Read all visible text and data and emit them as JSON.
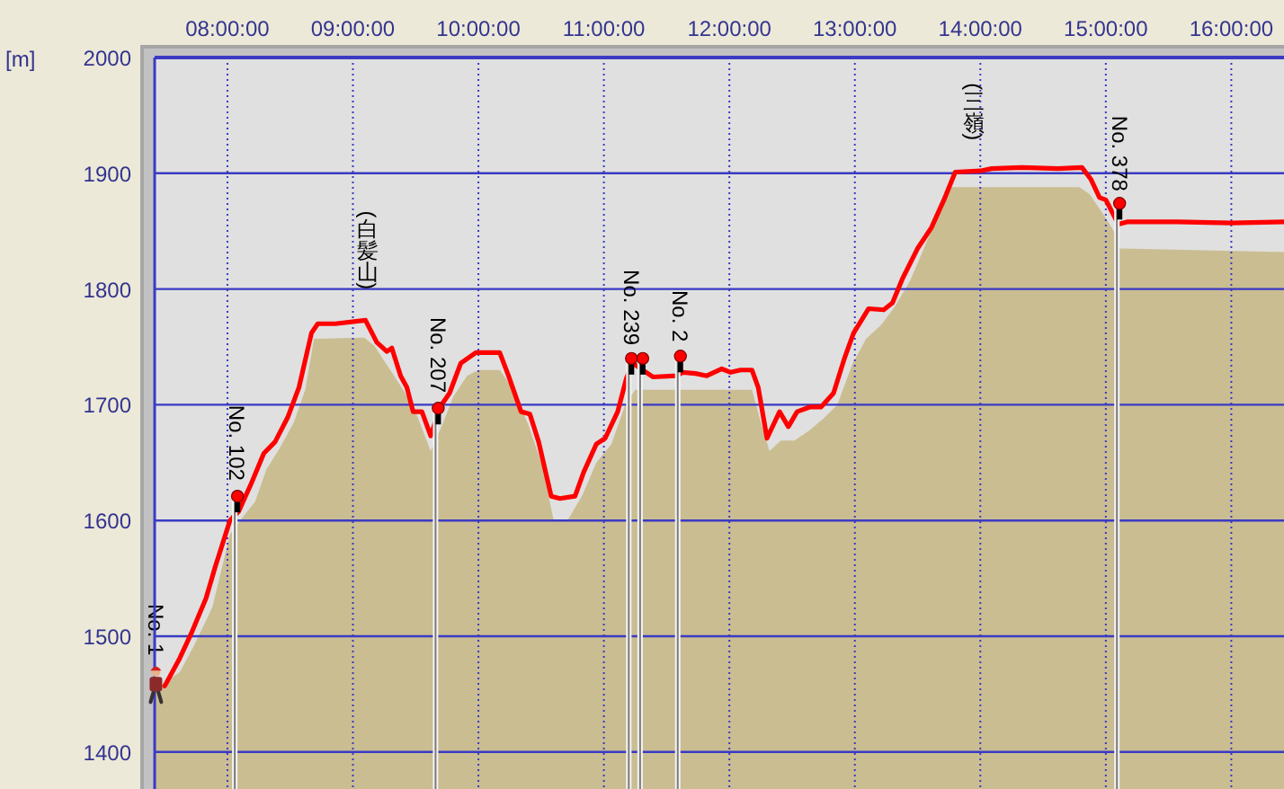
{
  "chart_data": {
    "type": "line",
    "ylabel": "[m]",
    "xlim": [
      7.42,
      16.42
    ],
    "ylim": [
      1368,
      2000
    ],
    "xticks": [
      {
        "value": 8,
        "label": "08:00:00"
      },
      {
        "value": 9,
        "label": "09:00:00"
      },
      {
        "value": 10,
        "label": "10:00:00"
      },
      {
        "value": 11,
        "label": "11:00:00"
      },
      {
        "value": 12,
        "label": "12:00:00"
      },
      {
        "value": 13,
        "label": "13:00:00"
      },
      {
        "value": 14,
        "label": "14:00:00"
      },
      {
        "value": 15,
        "label": "15:00:00"
      },
      {
        "value": 16,
        "label": "16:00:00"
      }
    ],
    "yticks": [
      1400,
      1500,
      1600,
      1700,
      1800,
      1900,
      2000
    ],
    "grid": true,
    "series": [
      {
        "type": "area",
        "color": "#cabd92",
        "x": [
          7.42,
          7.62,
          7.73,
          7.88,
          8.02,
          8.13,
          8.22,
          8.31,
          8.42,
          8.53,
          8.62,
          8.69,
          9.09,
          9.17,
          9.28,
          9.4,
          9.51,
          9.62,
          9.71,
          9.8,
          9.91,
          10.0,
          10.17,
          10.28,
          10.4,
          10.51,
          10.6,
          10.71,
          10.83,
          10.94,
          11.06,
          11.17,
          11.25,
          12.18,
          12.25,
          12.32,
          12.41,
          12.52,
          12.64,
          12.75,
          12.86,
          12.98,
          13.09,
          13.21,
          13.32,
          13.44,
          13.55,
          13.67,
          13.76,
          14.79,
          14.87,
          14.99,
          15.08,
          15.11,
          16.42
        ],
        "values": [
          1454,
          1469,
          1491,
          1525,
          1588,
          1604,
          1616,
          1644,
          1663,
          1685,
          1713,
          1757,
          1758,
          1751,
          1733,
          1713,
          1691,
          1660,
          1682,
          1707,
          1725,
          1730,
          1730,
          1713,
          1682,
          1647,
          1600,
          1600,
          1622,
          1650,
          1666,
          1700,
          1713,
          1713,
          1685,
          1660,
          1669,
          1669,
          1678,
          1688,
          1700,
          1735,
          1757,
          1769,
          1785,
          1807,
          1835,
          1866,
          1888,
          1888,
          1882,
          1863,
          1847,
          1835,
          1832
        ]
      },
      {
        "color": "#ff0000",
        "x": [
          7.5,
          7.62,
          7.71,
          7.83,
          7.9,
          8.02,
          8.09,
          8.19,
          8.29,
          8.38,
          8.48,
          8.57,
          8.67,
          8.72,
          8.86,
          9.1,
          9.19,
          9.27,
          9.31,
          9.38,
          9.43,
          9.48,
          9.55,
          9.62,
          9.7,
          9.77,
          9.86,
          9.98,
          10.17,
          10.24,
          10.34,
          10.41,
          10.48,
          10.58,
          10.65,
          10.77,
          10.84,
          10.94,
          11.01,
          11.11,
          11.18,
          11.23,
          11.39,
          11.58,
          11.63,
          11.73,
          11.82,
          11.94,
          12.01,
          12.09,
          12.18,
          12.23,
          12.3,
          12.4,
          12.47,
          12.54,
          12.64,
          12.73,
          12.83,
          12.92,
          12.99,
          13.11,
          13.23,
          13.3,
          13.38,
          13.5,
          13.61,
          13.71,
          13.8,
          14.0,
          14.09,
          14.33,
          14.62,
          14.81,
          14.88,
          14.95,
          15.0,
          15.1,
          15.17,
          15.57,
          16.0,
          16.42
        ],
        "values": [
          1457,
          1481,
          1502,
          1533,
          1559,
          1600,
          1608,
          1632,
          1658,
          1668,
          1689,
          1715,
          1762,
          1770,
          1770,
          1773,
          1754,
          1746,
          1749,
          1725,
          1715,
          1694,
          1694,
          1673,
          1699,
          1710,
          1736,
          1745,
          1745,
          1725,
          1694,
          1692,
          1668,
          1621,
          1619,
          1621,
          1642,
          1666,
          1671,
          1694,
          1723,
          1736,
          1724,
          1725,
          1728,
          1727,
          1725,
          1731,
          1728,
          1730,
          1730,
          1715,
          1671,
          1694,
          1681,
          1694,
          1698,
          1698,
          1710,
          1741,
          1762,
          1783,
          1782,
          1788,
          1809,
          1835,
          1853,
          1877,
          1901,
          1902,
          1904,
          1905,
          1904,
          1905,
          1895,
          1879,
          1877,
          1856,
          1858,
          1858,
          1857,
          1858
        ]
      },
      {
        "type": "lollipop",
        "color": "#ff0000",
        "x": [
          8.08,
          9.68,
          11.22,
          11.31,
          11.61,
          15.11
        ],
        "values": [
          1621,
          1697,
          1740,
          1740,
          1742,
          1874
        ]
      }
    ],
    "annotations": [
      {
        "text": "No. 1",
        "x": 7.43,
        "y": 1457
      },
      {
        "text": "No. 102",
        "x": 8.08,
        "y": 1608
      },
      {
        "text": "(白髪山)",
        "x": 9.12,
        "y": 1773
      },
      {
        "text": "No. 207",
        "x": 9.68,
        "y": 1684
      },
      {
        "text": "No. 239",
        "x": 11.22,
        "y": 1725
      },
      {
        "text": "No. 2",
        "x": 11.61,
        "y": 1728
      },
      {
        "text": "(三嶺)",
        "x": 13.95,
        "y": 1902
      },
      {
        "text": "No. 378",
        "x": 15.11,
        "y": 1858
      }
    ]
  }
}
